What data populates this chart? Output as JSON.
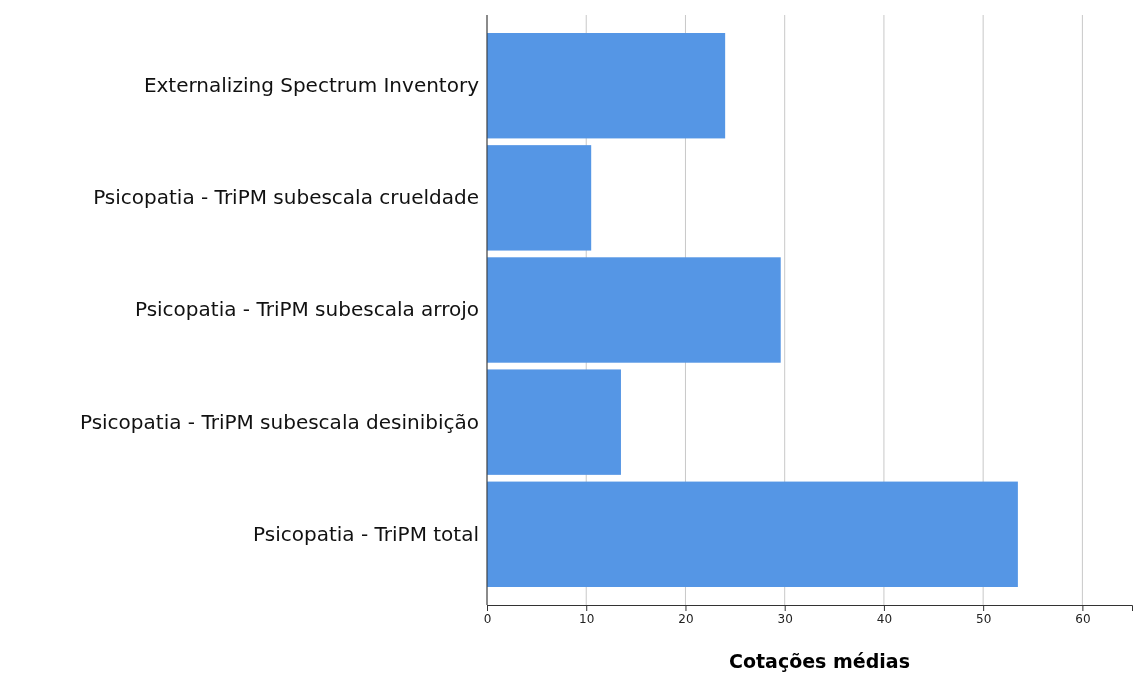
{
  "chart_data": {
    "type": "bar",
    "orientation": "horizontal",
    "xlabel": "Cotações médias",
    "categories": [
      "Externalizing Spectrum Inventory",
      "Psicopatia - TriPM subescala crueldade",
      "Psicopatia - TriPM subescala arrojo",
      "Psicopatia - TriPM subescala desinibição",
      "Psicopatia - TriPM total"
    ],
    "values": [
      24.0,
      10.5,
      29.6,
      13.5,
      53.5
    ],
    "color": "#5596e5",
    "xlim": [
      0,
      65
    ],
    "xticks": [
      0,
      10,
      20,
      30,
      40,
      50,
      60
    ],
    "grid": "x"
  }
}
